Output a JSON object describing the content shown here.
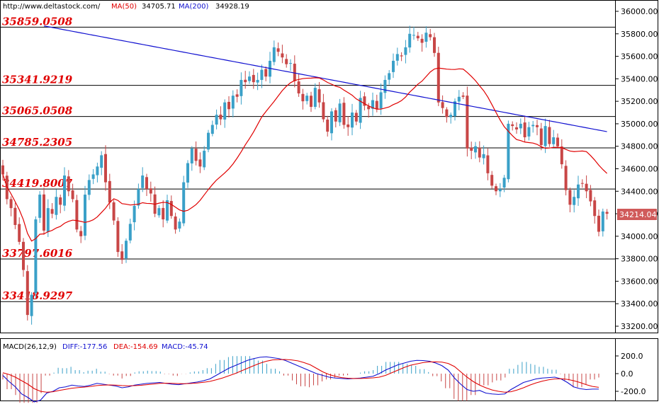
{
  "header": {
    "url": "http://www.deltastock.com/",
    "ma50_label": "MA(50)",
    "ma50_value": "34705.71",
    "ma200_label": "MA(200)",
    "ma200_value": "34928.19"
  },
  "price_badge": "34214.04",
  "macd_header": {
    "params": "MACD(26,12,9)",
    "diff": "DIFF:-177.56",
    "dea": "DEA:-154.69",
    "macd": "MACD:-45.74"
  },
  "colors": {
    "up": "#3aa0c8",
    "down": "#c84646",
    "ma50": "#e00000",
    "ma200": "#1010d0",
    "level_text": "#e00000",
    "badge": "#d05a5a"
  },
  "chart_data": [
    {
      "type": "candlestick",
      "title": "",
      "ylim": [
        33100,
        36050
      ],
      "y_ticks": [
        "36000.00",
        "35800.00",
        "35600.00",
        "35400.00",
        "35200.00",
        "35000.00",
        "34800.00",
        "34600.00",
        "34400.00",
        "34200.00",
        "34000.00",
        "33800.00",
        "33600.00",
        "33400.00",
        "33200.00"
      ],
      "levels": [
        {
          "label": "35859.0508",
          "value": 35859.05
        },
        {
          "label": "35341.9219",
          "value": 35341.92
        },
        {
          "label": "35065.0508",
          "value": 35065.05
        },
        {
          "label": "34785.2305",
          "value": 34785.23
        },
        {
          "label": "34419.8007",
          "value": 34419.8
        },
        {
          "label": "33797.6016",
          "value": 33797.6
        },
        {
          "label": "33418.9297",
          "value": 33418.93
        }
      ],
      "close": [
        34550,
        34330,
        34250,
        34100,
        33950,
        33700,
        33300,
        33480,
        34150,
        34370,
        34050,
        34250,
        34200,
        34350,
        34280,
        34540,
        34400,
        34330,
        34060,
        34000,
        34370,
        34500,
        34550,
        34620,
        34720,
        34480,
        34300,
        34140,
        33860,
        33790,
        33960,
        34110,
        34270,
        34420,
        34540,
        34420,
        34380,
        34200,
        34250,
        34150,
        34320,
        34180,
        34060,
        34130,
        34480,
        34650,
        34780,
        34670,
        34620,
        34760,
        34920,
        34990,
        35080,
        35040,
        35190,
        35130,
        35250,
        35240,
        35390,
        35370,
        35420,
        35370,
        35390,
        35480,
        35420,
        35560,
        35680,
        35640,
        35590,
        35530,
        35540,
        35380,
        35270,
        35200,
        35250,
        35150,
        35320,
        35190,
        35040,
        34930,
        35110,
        35020,
        35180,
        34990,
        34970,
        35100,
        35020,
        35230,
        35160,
        35130,
        35210,
        35130,
        35280,
        35390,
        35450,
        35560,
        35620,
        35600,
        35680,
        35800,
        35790,
        35760,
        35720,
        35810,
        35770,
        35630,
        35190,
        35140,
        35060,
        35080,
        35200,
        35240,
        35240,
        34780,
        34760,
        34800,
        34700,
        34730,
        34560,
        34450,
        34400,
        34420,
        34520,
        35000,
        34980,
        34950,
        35000,
        34880,
        34970,
        34990,
        34970,
        34810,
        34980,
        34820,
        34880,
        34800,
        34640,
        34410,
        34280,
        34350,
        34460,
        34470,
        34400,
        34310,
        34180,
        34040,
        34220,
        34200
      ],
      "macd": {
        "ylim": [
          -300,
          300
        ],
        "y_ticks": [
          "200.0",
          "0.0",
          "-200.0"
        ],
        "diff": [
          -20,
          -90,
          -150,
          -230,
          -270,
          -320,
          -300,
          -220,
          -200,
          -160,
          -150,
          -130,
          -140,
          -145,
          -130,
          -110,
          -120,
          -130,
          -140,
          -160,
          -150,
          -130,
          -120,
          -110,
          -105,
          -100,
          -110,
          -120,
          -125,
          -115,
          -105,
          -95,
          -80,
          -60,
          -20,
          20,
          60,
          90,
          120,
          150,
          170,
          185,
          190,
          180,
          170,
          150,
          120,
          90,
          60,
          30,
          0,
          -20,
          -40,
          -50,
          -55,
          -60,
          -55,
          -50,
          -40,
          -30,
          0,
          40,
          70,
          100,
          120,
          140,
          150,
          148,
          140,
          120,
          90,
          40,
          -50,
          -120,
          -180,
          -200,
          -190,
          -220,
          -230,
          -235,
          -230,
          -180,
          -140,
          -100,
          -80,
          -60,
          -50,
          -45,
          -40,
          -60,
          -100,
          -150,
          -170,
          -180,
          -175,
          -175
        ],
        "dea": [
          10,
          -10,
          -40,
          -80,
          -120,
          -170,
          -200,
          -210,
          -205,
          -190,
          -178,
          -165,
          -158,
          -152,
          -145,
          -135,
          -130,
          -128,
          -130,
          -135,
          -138,
          -136,
          -132,
          -125,
          -118,
          -110,
          -108,
          -110,
          -113,
          -114,
          -111,
          -106,
          -98,
          -88,
          -70,
          -50,
          -25,
          0,
          30,
          60,
          90,
          118,
          140,
          155,
          158,
          160,
          155,
          145,
          125,
          100,
          60,
          20,
          -10,
          -30,
          -45,
          -52,
          -55,
          -55,
          -52,
          -48,
          -40,
          -20,
          10,
          40,
          70,
          95,
          110,
          125,
          132,
          133,
          130,
          115,
          80,
          20,
          -40,
          -90,
          -130,
          -160,
          -185,
          -200,
          -210,
          -205,
          -185,
          -160,
          -130,
          -105,
          -85,
          -70,
          -60,
          -58,
          -65,
          -80,
          -100,
          -125,
          -145,
          -155
        ]
      }
    }
  ]
}
